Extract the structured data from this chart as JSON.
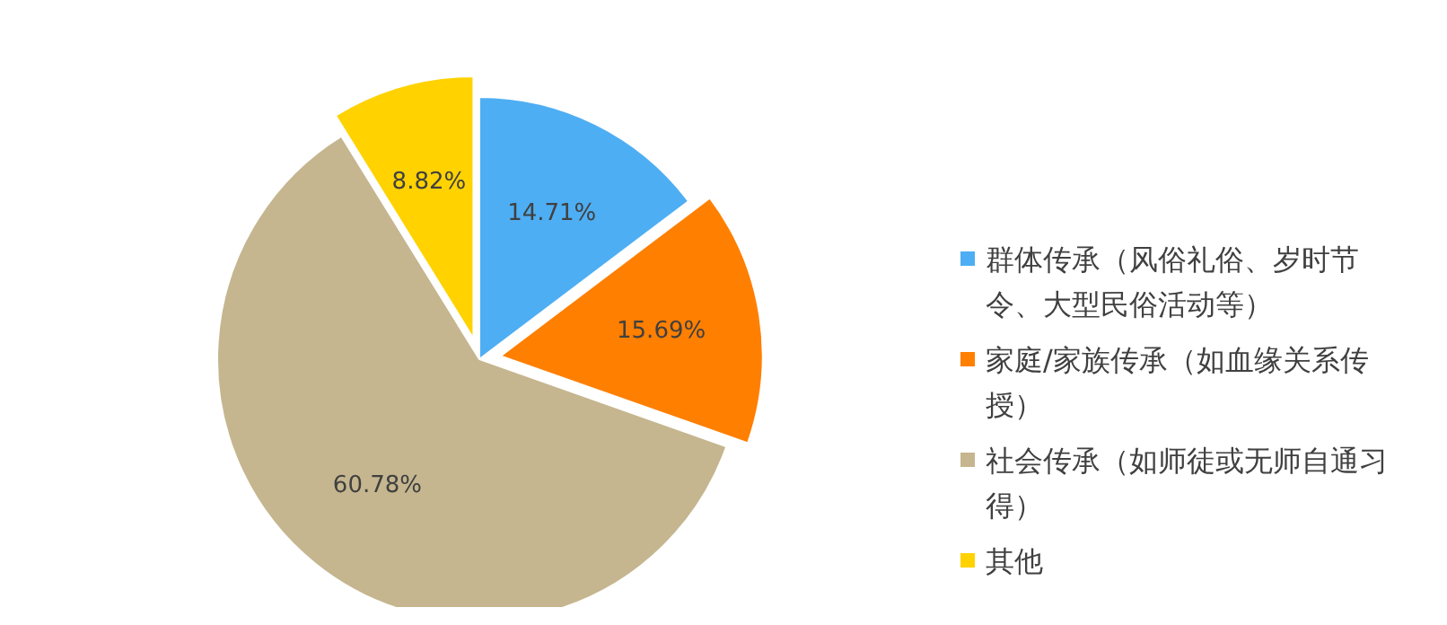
{
  "chart_data": {
    "type": "pie",
    "categories": [
      "群体传承（风俗礼俗、岁时节令、大型民俗活动等）",
      "家庭/家族传承（如血缘关系传授）",
      "社会传承（如师徒或无师自通习得）",
      "其他"
    ],
    "values": [
      14.71,
      15.69,
      60.78,
      8.82
    ],
    "colors": [
      "#4eaef3",
      "#ff7f00",
      "#c5b68f",
      "#ffd200"
    ],
    "value_labels": [
      "14.71%",
      "15.69%",
      "60.78%",
      "8.82%"
    ],
    "legend": "right"
  }
}
